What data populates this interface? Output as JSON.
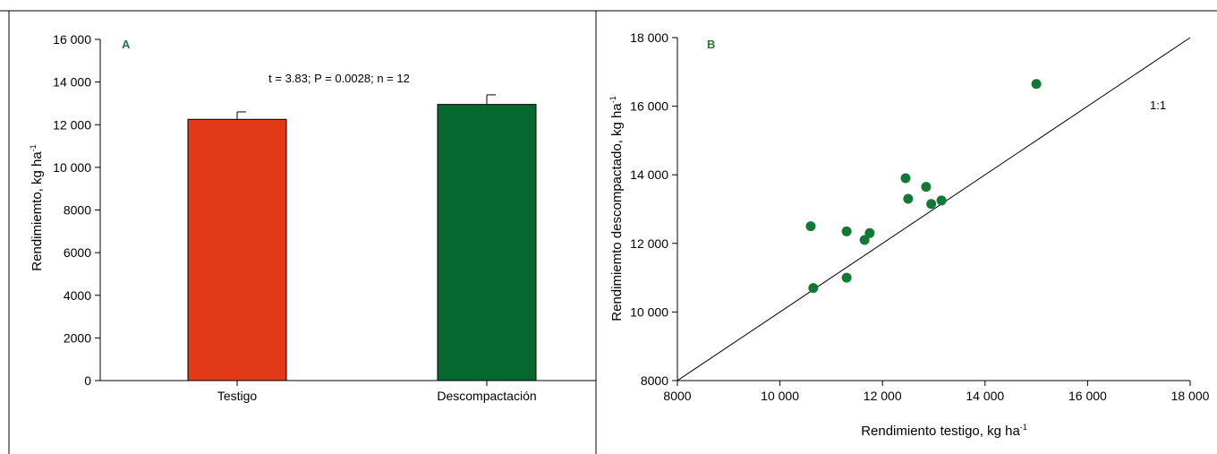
{
  "colors": {
    "testigo_bar": "#e23a18",
    "descompactacion_bar": "#04682f",
    "scatter_points": "#107a35",
    "panel_label": "#1f7a3a",
    "axes": "#000000"
  },
  "chart_data": [
    {
      "type": "bar",
      "panel_label": "A",
      "categories": [
        "Testigo",
        "Descompactación"
      ],
      "values": [
        12250,
        12950
      ],
      "error_bars": [
        350,
        450
      ],
      "annotation": "t = 3.83; P = 0.0028; n = 12",
      "xlabel": "",
      "ylabel": "Rendimiemto, kg ha",
      "ylabel_superscript": "-1",
      "ylim": [
        0,
        16000
      ],
      "yticks": [
        0,
        2000,
        4000,
        6000,
        8000,
        10000,
        12000,
        14000,
        16000
      ],
      "ytick_labels": [
        "0",
        "2000",
        "4000",
        "6000",
        "8000",
        "10 000",
        "12 000",
        "14 000",
        "16 000"
      ],
      "grid": false
    },
    {
      "type": "scatter",
      "panel_label": "B",
      "points": [
        {
          "x": 10600,
          "y": 12500
        },
        {
          "x": 10650,
          "y": 10700
        },
        {
          "x": 11300,
          "y": 12350
        },
        {
          "x": 11300,
          "y": 11000
        },
        {
          "x": 11650,
          "y": 12100
        },
        {
          "x": 11750,
          "y": 12300
        },
        {
          "x": 12450,
          "y": 13900
        },
        {
          "x": 12500,
          "y": 13300
        },
        {
          "x": 12850,
          "y": 13650
        },
        {
          "x": 12950,
          "y": 13150
        },
        {
          "x": 13150,
          "y": 13250
        },
        {
          "x": 15000,
          "y": 16650
        }
      ],
      "reference_line_label": "1:1",
      "xlabel": "Rendimiento testigo, kg ha",
      "xlabel_superscript": "-1",
      "ylabel": "Rendimiemto descompactado, kg ha",
      "ylabel_superscript": "-1",
      "xlim": [
        8000,
        18000
      ],
      "ylim": [
        8000,
        18000
      ],
      "xticks": [
        8000,
        10000,
        12000,
        14000,
        16000,
        18000
      ],
      "xtick_labels": [
        "8000",
        "10 000",
        "12 000",
        "14 000",
        "16 000",
        "18 000"
      ],
      "yticks": [
        8000,
        10000,
        12000,
        14000,
        16000,
        18000
      ],
      "ytick_labels": [
        "8000",
        "10 000",
        "12 000",
        "14 000",
        "16 000",
        "18 000"
      ],
      "grid": false
    }
  ]
}
